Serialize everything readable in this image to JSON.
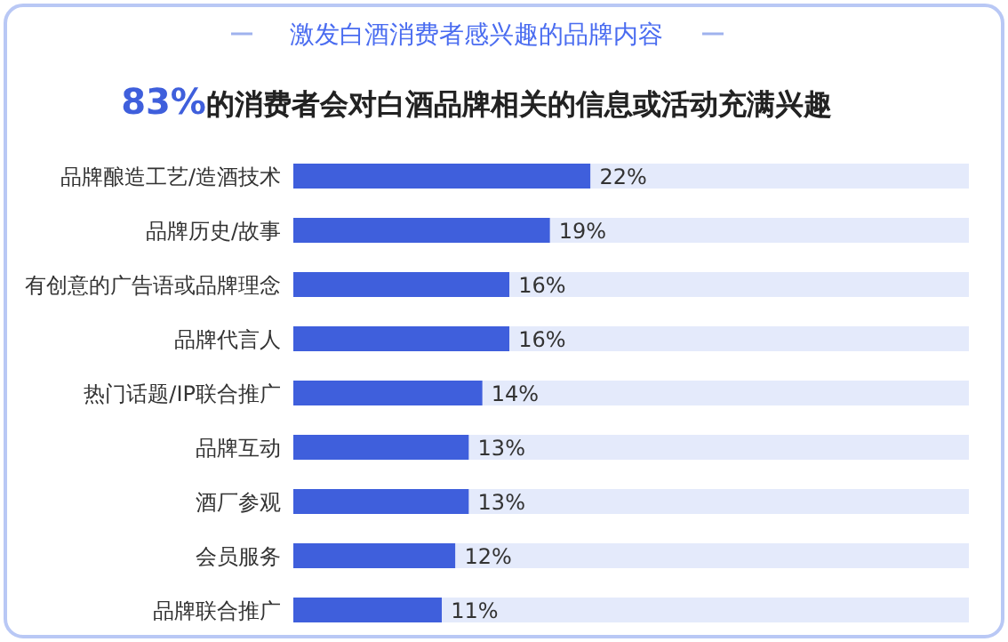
{
  "chart_data": {
    "type": "bar",
    "orientation": "horizontal",
    "stacked": true,
    "title": "激发白酒消费者感兴趣的品牌内容",
    "subtitle": "**83%**的消费者会对白酒品牌相关的信息或活动充满兴趣",
    "categories": [
      "品牌酿造工艺/造酒技术",
      "品牌历史/故事",
      "有创意的广告语或品牌理念",
      "品牌代言人",
      "热门话题/IP联合推广",
      "品牌互动",
      "酒厂参观",
      "会员服务",
      "品牌联合推广"
    ],
    "series": [
      {
        "color": "#3f5fdc",
        "values": [
          22,
          19,
          16,
          16,
          14,
          13,
          13,
          12,
          11
        ],
        "value_labels": [
          "22%",
          "19%",
          "16%",
          "16%",
          "14%",
          "13%",
          "13%",
          "12%",
          "11%"
        ]
      },
      {
        "color": "#e4eafb",
        "values": [
          28,
          31,
          34,
          34,
          36,
          37,
          37,
          38,
          39
        ]
      }
    ],
    "xlim": [
      0,
      50
    ]
  }
}
